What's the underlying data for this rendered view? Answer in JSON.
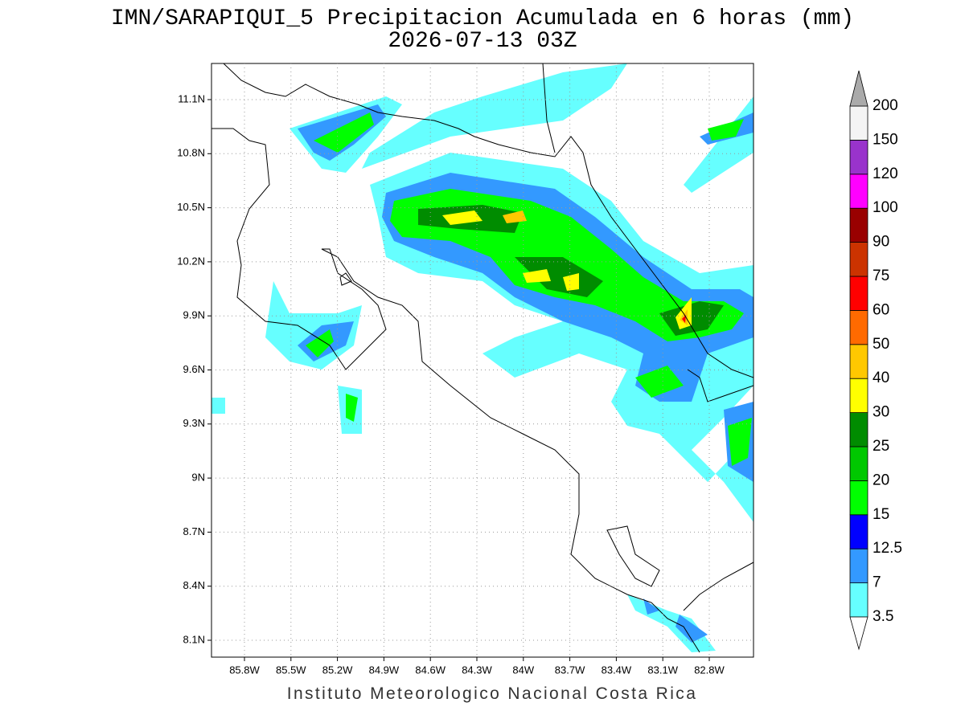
{
  "title": "IMN/SARAPIQUI_5 Precipitacion Acumulada en 6 horas (mm)",
  "subtitle": "2026-07-13 03Z",
  "footer": "Instituto Meteorologico Nacional Costa Rica",
  "lat_labels": [
    "11.1N",
    "10.8N",
    "10.5N",
    "10.2N",
    "9.9N",
    "9.6N",
    "9.3N",
    "9N",
    "8.7N",
    "8.4N",
    "8.1N"
  ],
  "lon_labels": [
    "85.8W",
    "85.5W",
    "85.2W",
    "84.9W",
    "84.6W",
    "84.3W",
    "84W",
    "83.7W",
    "83.4W",
    "83.1W",
    "82.8W"
  ],
  "colorbar": {
    "levels": [
      3.5,
      7,
      12.5,
      15,
      20,
      25,
      30,
      40,
      50,
      60,
      75,
      90,
      100,
      120,
      150,
      200
    ],
    "colors": [
      "#66ffff",
      "#3399ff",
      "#0000ff",
      "#00ff00",
      "#00c800",
      "#008c00",
      "#ffff00",
      "#ffc800",
      "#ff6a00",
      "#ff0000",
      "#cc3300",
      "#990000",
      "#ff00ff",
      "#9933cc",
      "#f4f4f4"
    ],
    "under_color": "#ffffff",
    "over_color": "#aaaaaa"
  }
}
